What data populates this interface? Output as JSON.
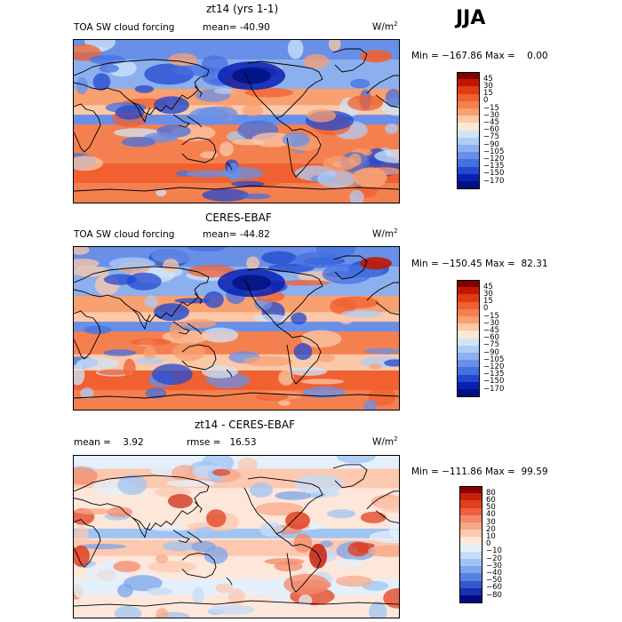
{
  "season": "JJA",
  "panels": [
    {
      "title": "zt14 (yrs 1-1)",
      "left_label": "TOA SW cloud forcing",
      "stat_label": "mean= -40.90",
      "units": "W/m",
      "units_exp": "2",
      "minmax": "Min = −167.86 Max =    0.00",
      "legend": [
        "45",
        "30",
        "15",
        "0",
        "−15",
        "−30",
        "−45",
        "−60",
        "−75",
        "−90",
        "−105",
        "−120",
        "−135",
        "−150",
        "−170"
      ],
      "legend_colors": [
        "#800000",
        "#c01800",
        "#e03c10",
        "#f06030",
        "#f48050",
        "#f8a070",
        "#fbc8a8",
        "#fde8d8",
        "#d0e4f8",
        "#b0ccf4",
        "#8cb0ee",
        "#6890e8",
        "#4470e0",
        "#2248d0",
        "#0820b0",
        "#001080"
      ],
      "style": "model"
    },
    {
      "title": "CERES-EBAF",
      "left_label": "TOA SW cloud forcing",
      "stat_label": "mean= -44.82",
      "units": "W/m",
      "units_exp": "2",
      "minmax": "Min = −150.45 Max =  82.31",
      "legend": [
        "45",
        "30",
        "15",
        "0",
        "−15",
        "−30",
        "−45",
        "−60",
        "−75",
        "−90",
        "−105",
        "−120",
        "−135",
        "−150",
        "−170"
      ],
      "legend_colors": [
        "#800000",
        "#c01800",
        "#e03c10",
        "#f06030",
        "#f48050",
        "#f8a070",
        "#fbc8a8",
        "#fde8d8",
        "#d0e4f8",
        "#b0ccf4",
        "#8cb0ee",
        "#6890e8",
        "#4470e0",
        "#2248d0",
        "#0820b0",
        "#001080"
      ],
      "style": "obs"
    },
    {
      "title": "zt14 - CERES-EBAF",
      "left_label": "mean =    3.92",
      "stat_label": "rmse =   16.53",
      "units": "W/m",
      "units_exp": "2",
      "minmax": "Min = −111.86 Max =  99.59",
      "legend": [
        "80",
        "60",
        "50",
        "40",
        "30",
        "20",
        "10",
        "0",
        "−10",
        "−20",
        "−30",
        "−40",
        "−50",
        "−60",
        "−80"
      ],
      "legend_colors": [
        "#8b0000",
        "#c8200a",
        "#e04020",
        "#f06040",
        "#f48868",
        "#f8a888",
        "#fcc8b0",
        "#fde6da",
        "#e4f0fc",
        "#c4dcf8",
        "#a0c4f2",
        "#7ca4ea",
        "#5880e0",
        "#3458d0",
        "#1830b0",
        "#000a80"
      ],
      "style": "diff"
    }
  ]
}
